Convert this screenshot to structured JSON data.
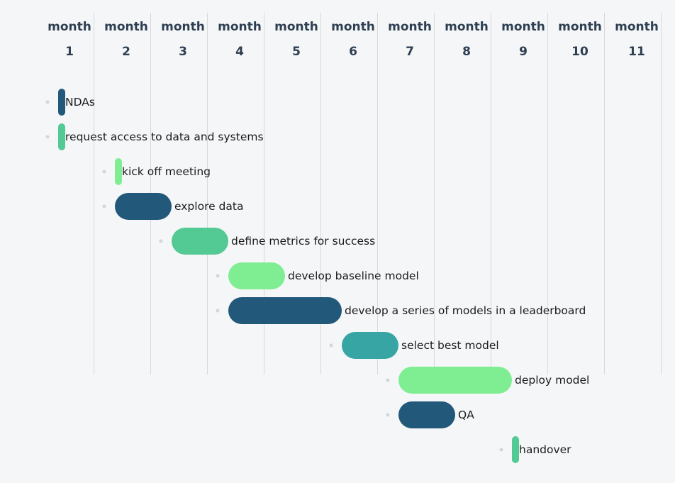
{
  "colors": {
    "navy": "#22587a",
    "green": "#53c994",
    "lightgreen": "#7fee93",
    "teal": "#38a5a5"
  },
  "chart_data": {
    "type": "gantt",
    "title": "",
    "x_axis_word": "month",
    "months": [
      "1",
      "2",
      "3",
      "4",
      "5",
      "6",
      "7",
      "8",
      "9",
      "10",
      "11"
    ],
    "grid": true,
    "tasks": [
      {
        "name": "NDAs",
        "start": 1,
        "duration": 0,
        "color": "navy"
      },
      {
        "name": "request access to data and systems",
        "start": 1,
        "duration": 0,
        "color": "green"
      },
      {
        "name": "kick off meeting",
        "start": 2,
        "duration": 0,
        "color": "lightgreen"
      },
      {
        "name": "explore data",
        "start": 2,
        "duration": 1,
        "color": "navy"
      },
      {
        "name": "define metrics for success",
        "start": 3,
        "duration": 1,
        "color": "green"
      },
      {
        "name": "develop baseline model",
        "start": 4,
        "duration": 1,
        "color": "lightgreen"
      },
      {
        "name": "develop a series of models in a leaderboard",
        "start": 4,
        "duration": 2,
        "color": "navy"
      },
      {
        "name": "select best model",
        "start": 6,
        "duration": 1,
        "color": "teal"
      },
      {
        "name": "deploy model",
        "start": 7,
        "duration": 2,
        "color": "lightgreen"
      },
      {
        "name": "QA",
        "start": 7,
        "duration": 1,
        "color": "navy"
      },
      {
        "name": "handover",
        "start": 9,
        "duration": 0,
        "color": "green"
      }
    ]
  }
}
